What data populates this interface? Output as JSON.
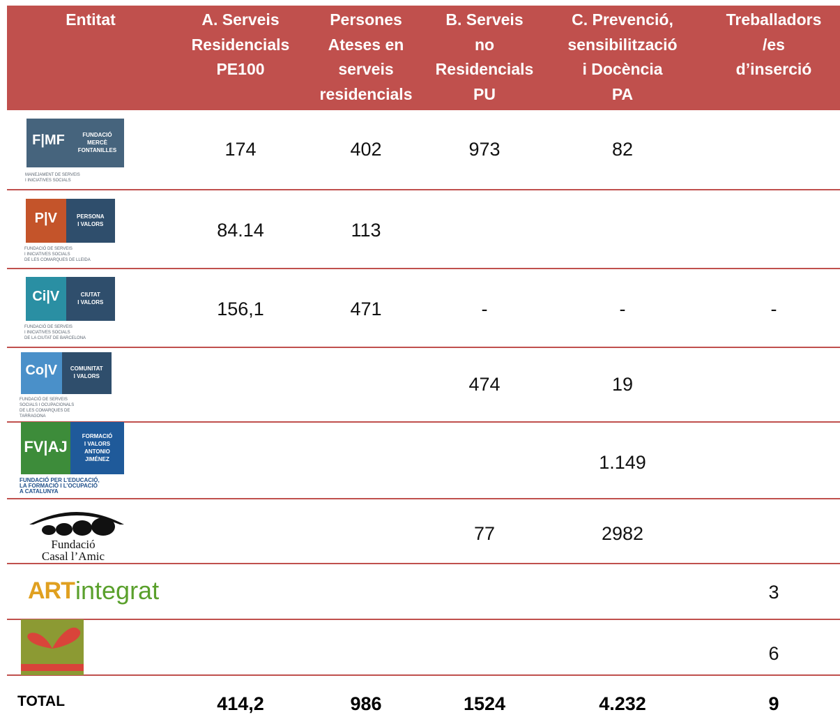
{
  "header": {
    "columns": [
      [
        "Entitat"
      ],
      [
        "A. Serveis",
        "Residencials",
        "PE100"
      ],
      [
        "Persones",
        "Ateses en",
        "serveis",
        "residencials"
      ],
      [
        "B. Serveis",
        "no",
        "Residencials",
        "PU"
      ],
      [
        "C. Prevenció,",
        "sensibilització",
        "i Docència",
        "PA"
      ],
      [
        "Treballadors",
        "/es",
        "d’inserció"
      ]
    ]
  },
  "rows": [
    {
      "logo": {
        "mark": "F|MF",
        "name": [
          "FUNDACIÓ",
          "MERCÈ",
          "FONTANILLES"
        ],
        "tagline": [
          "MANEJAMENT DE SERVEIS",
          "I INICIATIVES SOCIALS"
        ]
      },
      "cells": [
        "174",
        "402",
        "973",
        "82",
        null
      ]
    },
    {
      "logo": {
        "mark": "P|V",
        "name": [
          "PERSONA",
          "I VALORS"
        ],
        "tagline": [
          "FUNDACIÓ DE SERVEIS",
          "I INICIATIVES SOCIALS",
          "DE LES COMARQUES DE LLEIDA"
        ]
      },
      "cells": [
        "84.14",
        "113",
        null,
        null,
        null
      ]
    },
    {
      "logo": {
        "mark": "Ci|V",
        "name": [
          "CIUTAT",
          "I VALORS"
        ],
        "tagline": [
          "FUNDACIÓ DE SERVEIS",
          "I INICIATIVES SOCIALS",
          "DE LA CIUTAT DE BARCELONA"
        ]
      },
      "cells": [
        "156,1",
        "471",
        "-",
        "-",
        "-"
      ]
    },
    {
      "logo": {
        "mark": "Co|V",
        "name": [
          "COMUNITAT",
          "I VALORS"
        ],
        "tagline": [
          "FUNDACIÓ DE SERVEIS",
          "SOCIALS I OCUPACIONALS",
          "DE LES COMARQUES DE",
          "TARRAGONA"
        ]
      },
      "cells": [
        null,
        null,
        "474",
        "19",
        null
      ]
    },
    {
      "logo": {
        "mark": "FV|AJ",
        "name": [
          "FORMACIÓ",
          "I VALORS",
          "ANTONIO",
          "JIMÉNEZ"
        ],
        "tagline": [
          "FUNDACIÓ PER L’EDUCACIÓ,",
          "LA FORMACIÓ I L’OCUPACIÓ",
          "A CATALUNYA"
        ]
      },
      "cells": [
        null,
        null,
        null,
        "1.149",
        null
      ]
    },
    {
      "logo": {
        "name": [
          "Fundació",
          "Casal l’Amic"
        ]
      },
      "cells": [
        null,
        null,
        "77",
        "2982",
        null
      ]
    },
    {
      "logo": {
        "mark": "ART",
        "name": [
          "integrat"
        ]
      },
      "cells": [
        null,
        null,
        null,
        null,
        "3"
      ]
    },
    {
      "logo": {},
      "cells": [
        null,
        null,
        null,
        null,
        "6"
      ]
    }
  ],
  "total": {
    "label": "TOTAL",
    "cells": [
      "414,2",
      "986",
      "1524",
      "4.232",
      "9"
    ]
  }
}
